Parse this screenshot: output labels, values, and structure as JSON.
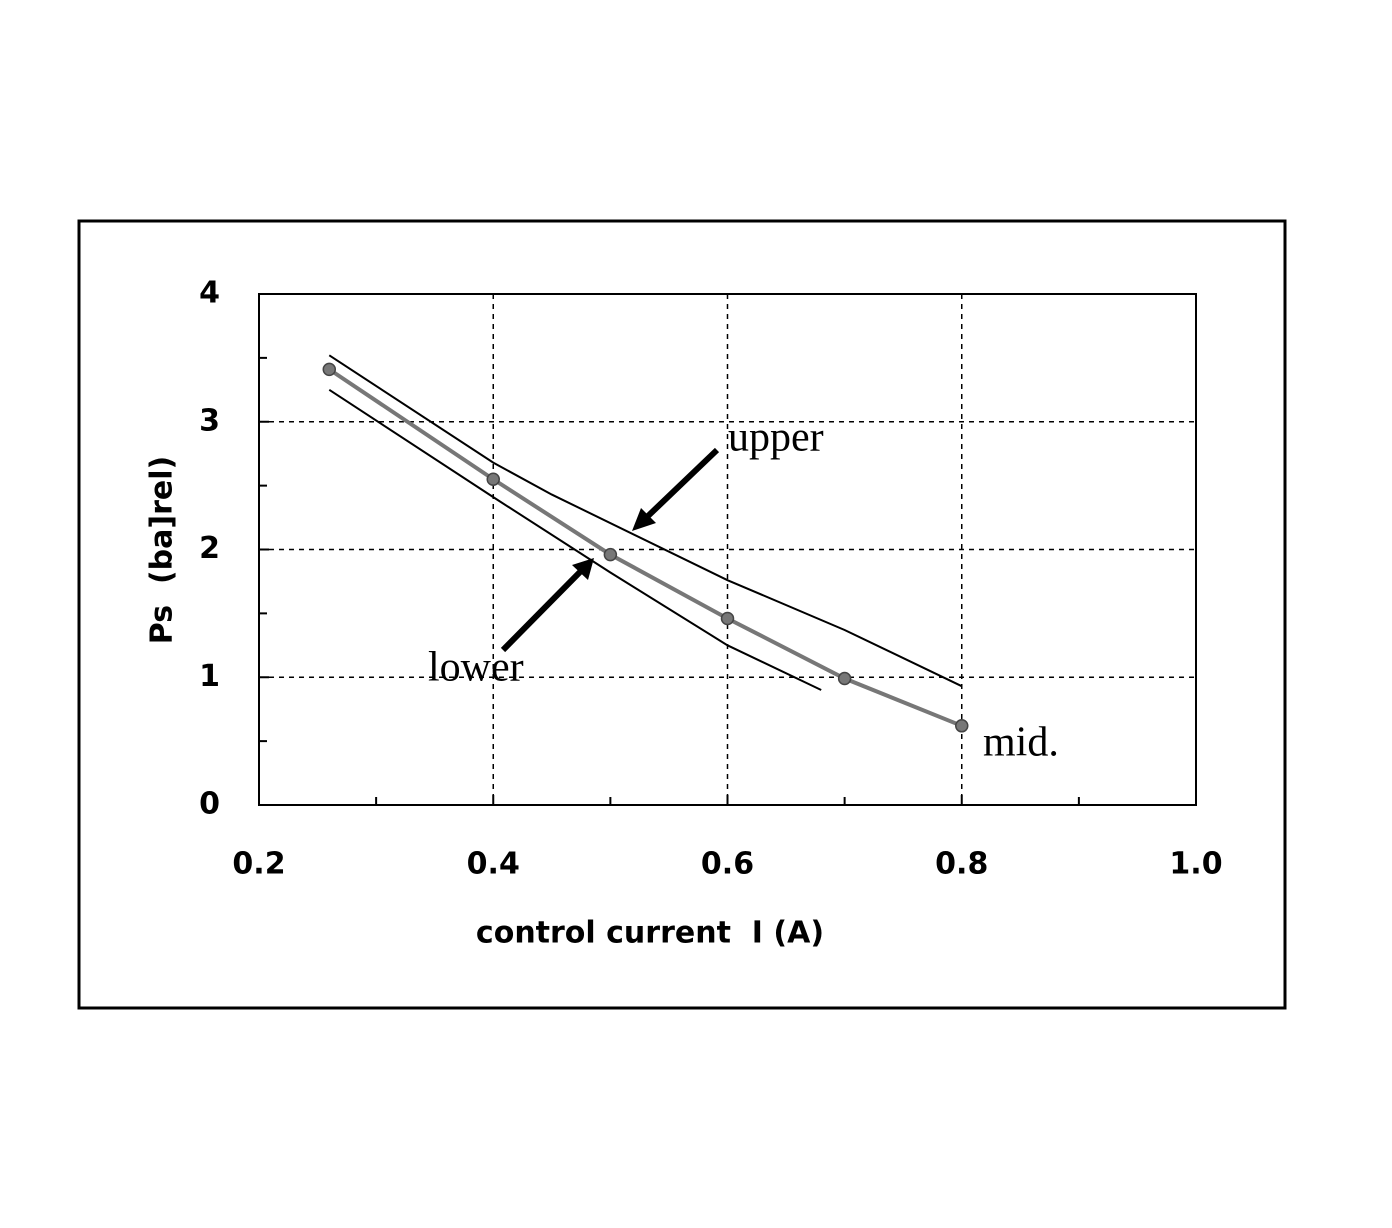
{
  "chart_data": {
    "type": "line",
    "xlabel": "control current  I (A)",
    "ylabel": "Ps  (ba]rel)",
    "xlim": [
      0.2,
      1.0
    ],
    "xticks": [
      0.2,
      0.4,
      0.6,
      0.8,
      {
        "value": 1.0,
        "label": "1.0"
      }
    ],
    "xminor_ticks": [
      0.3,
      0.5,
      0.7,
      0.9
    ],
    "ylim": [
      0,
      4
    ],
    "yticks": [
      0,
      1,
      2,
      3,
      4
    ],
    "yminor_ticks": [
      0.5,
      1.5,
      2.5,
      3.5
    ],
    "grid": true,
    "series": [
      {
        "name": "upper",
        "color": "#000000",
        "x": [
          0.26,
          0.4,
          0.45,
          0.6,
          0.7,
          0.8
        ],
        "values": [
          3.52,
          2.68,
          2.43,
          1.76,
          1.37,
          0.93
        ]
      },
      {
        "name": "mid.",
        "color": "#777777",
        "markers": true,
        "x": [
          0.26,
          0.4,
          0.5,
          0.6,
          0.7,
          0.8
        ],
        "values": [
          3.41,
          2.55,
          1.96,
          1.46,
          0.99,
          0.62
        ]
      },
      {
        "name": "lower",
        "color": "#000000",
        "x": [
          0.26,
          0.4,
          0.5,
          0.6,
          0.68
        ],
        "values": [
          3.25,
          2.41,
          1.82,
          1.25,
          0.9
        ]
      }
    ]
  }
}
